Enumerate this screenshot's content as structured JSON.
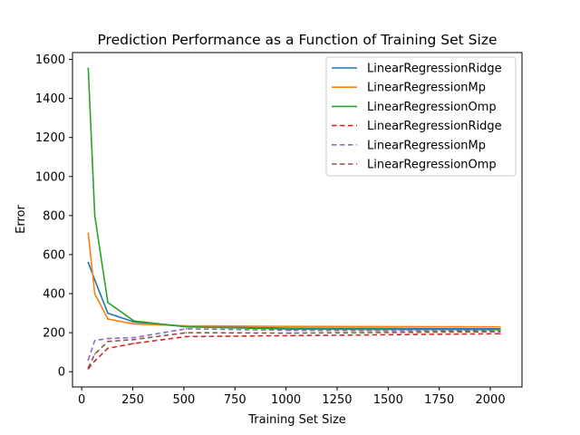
{
  "chart_data": {
    "type": "line",
    "title": "Prediction Performance as a Function of Training Set Size",
    "xlabel": "Training Set Size",
    "ylabel": "Error",
    "xlim": [
      -45,
      2155
    ],
    "ylim": [
      -78,
      1635
    ],
    "xticks": [
      0,
      250,
      500,
      750,
      1000,
      1250,
      1500,
      1750,
      2000
    ],
    "yticks": [
      0,
      200,
      400,
      600,
      800,
      1000,
      1200,
      1400,
      1600
    ],
    "grid": false,
    "legend_position": "top-right",
    "x": [
      32,
      64,
      128,
      256,
      512,
      1024,
      2048
    ],
    "series": [
      {
        "name": "LinearRegressionRidge",
        "color": "#1f77b4",
        "dash": "solid",
        "values": [
          560,
          470,
          300,
          255,
          232,
          223,
          220
        ]
      },
      {
        "name": "LinearRegressionMp",
        "color": "#ff7f0e",
        "dash": "solid",
        "values": [
          710,
          400,
          270,
          245,
          235,
          232,
          230
        ]
      },
      {
        "name": "LinearRegressionOmp",
        "color": "#2ca02c",
        "dash": "solid",
        "values": [
          1555,
          800,
          355,
          260,
          230,
          218,
          215
        ]
      },
      {
        "name": "LinearRegressionRidge",
        "color": "#d62728",
        "dash": "dashed",
        "values": [
          15,
          55,
          120,
          145,
          180,
          185,
          195
        ]
      },
      {
        "name": "LinearRegressionMp",
        "color": "#9467bd",
        "dash": "dashed",
        "values": [
          60,
          160,
          170,
          175,
          220,
          212,
          208
        ]
      },
      {
        "name": "LinearRegressionOmp",
        "color": "#8c564b",
        "dash": "dashed",
        "values": [
          20,
          90,
          155,
          165,
          200,
          198,
          205
        ]
      }
    ]
  }
}
